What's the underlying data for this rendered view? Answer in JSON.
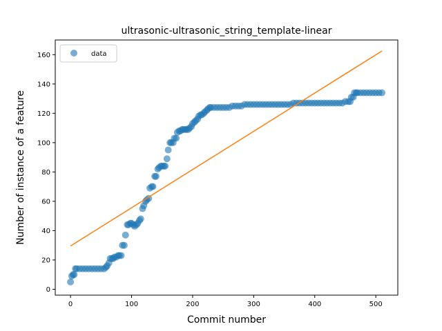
{
  "chart_data": {
    "type": "scatter",
    "title": "ultrasonic-ultrasonic_string_template-linear",
    "xlabel": "Commit number",
    "ylabel": "Number of instance of a feature",
    "xlim": [
      -25,
      536
    ],
    "ylim": [
      -4,
      170
    ],
    "x_ticks": [
      0,
      100,
      200,
      300,
      400,
      500
    ],
    "y_ticks": [
      0,
      20,
      40,
      60,
      80,
      100,
      120,
      140,
      160
    ],
    "legend": {
      "position": "top-left",
      "entries": [
        "data"
      ]
    },
    "colors": {
      "data": "#1f77b4",
      "fit": "#ff7f0e"
    },
    "series": [
      {
        "name": "data",
        "kind": "scatter",
        "points": [
          [
            0,
            5
          ],
          [
            2,
            9
          ],
          [
            4,
            10
          ],
          [
            6,
            10
          ],
          [
            8,
            14
          ],
          [
            10,
            14
          ],
          [
            15,
            14
          ],
          [
            20,
            14
          ],
          [
            25,
            14
          ],
          [
            30,
            14
          ],
          [
            35,
            14
          ],
          [
            40,
            14
          ],
          [
            45,
            14
          ],
          [
            50,
            14
          ],
          [
            55,
            14
          ],
          [
            58,
            15
          ],
          [
            60,
            16
          ],
          [
            63,
            18
          ],
          [
            65,
            21
          ],
          [
            68,
            21
          ],
          [
            70,
            21
          ],
          [
            72,
            22
          ],
          [
            75,
            22
          ],
          [
            78,
            23
          ],
          [
            80,
            23
          ],
          [
            83,
            23
          ],
          [
            85,
            30
          ],
          [
            88,
            30
          ],
          [
            90,
            37
          ],
          [
            93,
            44
          ],
          [
            95,
            44
          ],
          [
            98,
            45
          ],
          [
            100,
            45
          ],
          [
            103,
            44
          ],
          [
            105,
            43
          ],
          [
            108,
            44
          ],
          [
            110,
            45
          ],
          [
            113,
            47
          ],
          [
            115,
            48
          ],
          [
            118,
            55
          ],
          [
            120,
            57
          ],
          [
            123,
            60
          ],
          [
            125,
            61
          ],
          [
            128,
            62
          ],
          [
            130,
            69
          ],
          [
            133,
            70
          ],
          [
            135,
            70
          ],
          [
            138,
            77
          ],
          [
            140,
            77
          ],
          [
            143,
            82
          ],
          [
            145,
            83
          ],
          [
            148,
            84
          ],
          [
            150,
            84
          ],
          [
            153,
            84
          ],
          [
            155,
            84
          ],
          [
            158,
            89
          ],
          [
            160,
            95
          ],
          [
            163,
            100
          ],
          [
            165,
            100
          ],
          [
            168,
            100
          ],
          [
            170,
            103
          ],
          [
            173,
            103
          ],
          [
            175,
            107
          ],
          [
            178,
            108
          ],
          [
            180,
            108
          ],
          [
            183,
            109
          ],
          [
            185,
            109
          ],
          [
            188,
            109
          ],
          [
            190,
            109
          ],
          [
            193,
            109
          ],
          [
            195,
            110
          ],
          [
            198,
            111
          ],
          [
            200,
            113
          ],
          [
            203,
            114
          ],
          [
            205,
            115
          ],
          [
            208,
            116
          ],
          [
            210,
            118
          ],
          [
            213,
            119
          ],
          [
            215,
            119
          ],
          [
            218,
            120
          ],
          [
            220,
            121
          ],
          [
            223,
            122
          ],
          [
            225,
            123
          ],
          [
            228,
            124
          ],
          [
            230,
            124
          ],
          [
            235,
            124
          ],
          [
            240,
            124
          ],
          [
            245,
            124
          ],
          [
            250,
            124
          ],
          [
            255,
            124
          ],
          [
            260,
            124
          ],
          [
            265,
            125
          ],
          [
            270,
            125
          ],
          [
            275,
            125
          ],
          [
            280,
            125
          ],
          [
            285,
            126
          ],
          [
            290,
            126
          ],
          [
            295,
            126
          ],
          [
            300,
            126
          ],
          [
            305,
            126
          ],
          [
            310,
            126
          ],
          [
            315,
            126
          ],
          [
            320,
            126
          ],
          [
            325,
            126
          ],
          [
            330,
            126
          ],
          [
            335,
            126
          ],
          [
            340,
            126
          ],
          [
            345,
            126
          ],
          [
            350,
            126
          ],
          [
            355,
            126
          ],
          [
            360,
            126
          ],
          [
            365,
            127
          ],
          [
            370,
            127
          ],
          [
            375,
            127
          ],
          [
            380,
            127
          ],
          [
            385,
            127
          ],
          [
            390,
            127
          ],
          [
            395,
            127
          ],
          [
            400,
            127
          ],
          [
            405,
            127
          ],
          [
            410,
            127
          ],
          [
            415,
            127
          ],
          [
            420,
            127
          ],
          [
            425,
            127
          ],
          [
            430,
            127
          ],
          [
            435,
            127
          ],
          [
            440,
            127
          ],
          [
            445,
            127
          ],
          [
            450,
            128
          ],
          [
            455,
            128
          ],
          [
            458,
            128
          ],
          [
            460,
            131
          ],
          [
            463,
            131
          ],
          [
            465,
            134
          ],
          [
            468,
            134
          ],
          [
            470,
            134
          ],
          [
            475,
            134
          ],
          [
            480,
            134
          ],
          [
            485,
            134
          ],
          [
            490,
            134
          ],
          [
            495,
            134
          ],
          [
            500,
            134
          ],
          [
            505,
            134
          ],
          [
            510,
            134
          ]
        ]
      },
      {
        "kind": "line",
        "points": [
          [
            0,
            29.5
          ],
          [
            510,
            162.5
          ]
        ]
      }
    ]
  }
}
